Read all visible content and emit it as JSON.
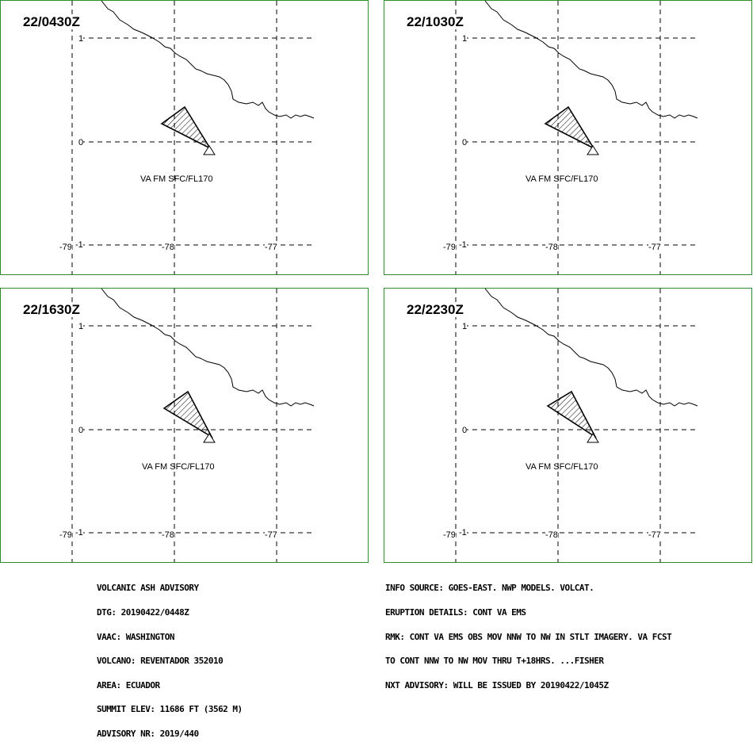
{
  "panels": [
    {
      "time": "22/0430Z",
      "label": "VA FM SFC/FL170"
    },
    {
      "time": "22/1030Z",
      "label": "VA FM SFC/FL170"
    },
    {
      "time": "22/1630Z",
      "label": "VA FM SFC/FL170"
    },
    {
      "time": "22/2230Z",
      "label": "VA FM SFC/FL170"
    }
  ],
  "grid": {
    "lat_labels": [
      "1",
      "0",
      "-1"
    ],
    "lon_labels": [
      "-79",
      "-78",
      "-77"
    ]
  },
  "advisory_left": [
    "VOLCANIC ASH ADVISORY",
    "DTG: 20190422/0448Z",
    "VAAC: WASHINGTON",
    "VOLCANO: REVENTADOR 352010",
    "AREA: ECUADOR",
    "SUMMIT ELEV: 11686 FT (3562 M)",
    "ADVISORY NR: 2019/440"
  ],
  "advisory_right": [
    "INFO SOURCE: GOES-EAST. NWP MODELS. VOLCAT.",
    "ERUPTION DETAILS: CONT VA EMS",
    "RMK: CONT VA EMS OBS MOV NNW TO NW IN STLT IMAGERY. VA FCST",
    "TO CONT NNW TO NW MOV THRU T+18HRS. ...FISHER",
    "NXT ADVISORY: WILL BE ISSUED BY 20190422/1045Z"
  ]
}
